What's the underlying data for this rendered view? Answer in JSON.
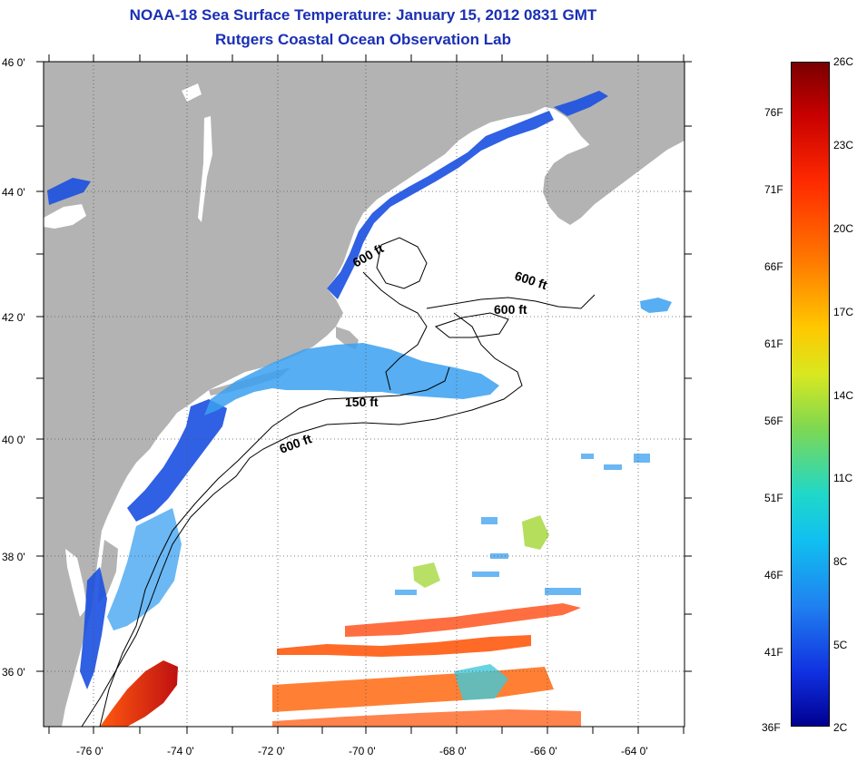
{
  "title": {
    "line1": "NOAA-18 Sea Surface Temperature:  January 15, 2012 0831 GMT",
    "line2": "Rutgers Coastal Ocean Observation Lab"
  },
  "map": {
    "lat_labels": [
      "46 0'",
      "44 0'",
      "42 0'",
      "40 0'",
      "38 0'",
      "36 0'"
    ],
    "lon_labels": [
      "-76 0'",
      "-74 0'",
      "-72 0'",
      "-70 0'",
      "-68 0'",
      "-66 0'",
      "-64 0'"
    ],
    "lon_range": [
      -77,
      -63
    ],
    "lat_range": [
      35,
      46
    ],
    "contour_labels": [
      "600 ft",
      "600 ft",
      "600 ft",
      "150 ft",
      "600 ft"
    ],
    "colors": {
      "land": "#b3b3b3",
      "ocean_nodata": "#ffffff",
      "cold_water": "#1a4fe0",
      "cool_water": "#3aa0f0",
      "warm_water": "#ff3a10"
    }
  },
  "colorbar": {
    "fahrenheit_labels": [
      "76F",
      "71F",
      "66F",
      "61F",
      "56F",
      "51F",
      "46F",
      "41F",
      "36F"
    ],
    "celsius_labels": [
      "26C",
      "23C",
      "20C",
      "17C",
      "14C",
      "11C",
      "8C",
      "5C",
      "2C"
    ],
    "range_c": [
      2,
      26
    ],
    "range_f": [
      36,
      79
    ]
  }
}
